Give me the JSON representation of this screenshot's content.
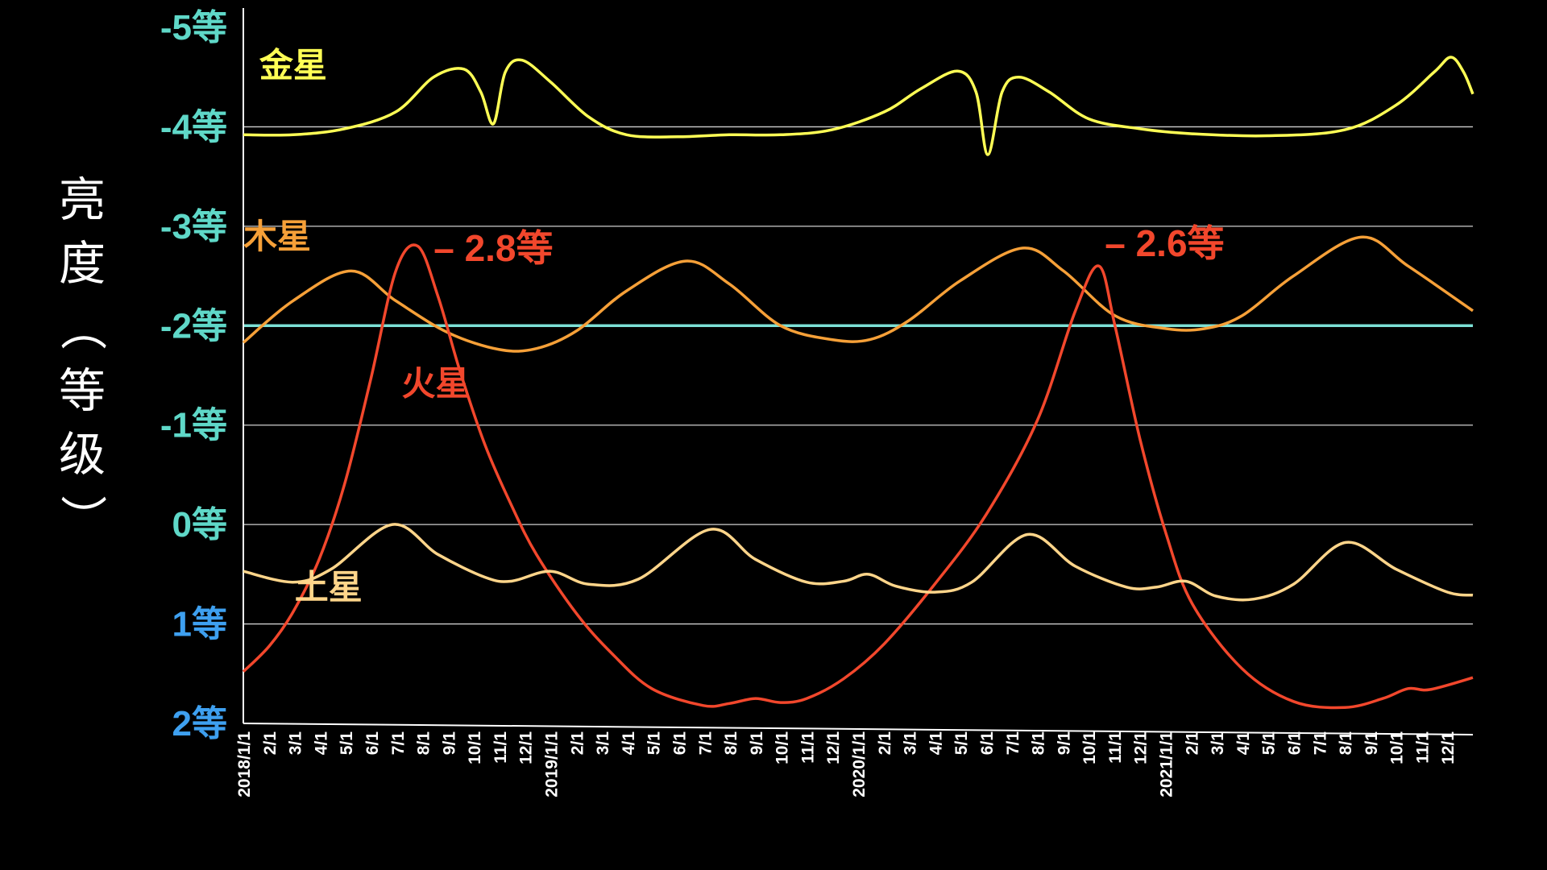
{
  "chart_data": {
    "type": "line",
    "ylabel": "亮度（等级）",
    "ylim": [
      2,
      -5
    ],
    "y_ticks": [
      {
        "value": -5,
        "label": "-5等",
        "color": "#5fd8c8"
      },
      {
        "value": -4,
        "label": "-4等",
        "color": "#5fd8c8"
      },
      {
        "value": -3,
        "label": "-3等",
        "color": "#5fd8c8"
      },
      {
        "value": -2,
        "label": "-2等",
        "color": "#5fd8c8"
      },
      {
        "value": -1,
        "label": "-1等",
        "color": "#5fd8c8"
      },
      {
        "value": 0,
        "label": "0等",
        "color": "#5fd8c8"
      },
      {
        "value": 1,
        "label": "1等",
        "color": "#3ea0f0"
      },
      {
        "value": 2,
        "label": "2等",
        "color": "#3ea0f0"
      }
    ],
    "gridlines": [
      -4,
      -3,
      -1,
      0,
      1
    ],
    "reference_line": {
      "value": -2,
      "color": "#7ce0d6"
    },
    "x_range": [
      "2018-01-01",
      "2021-12-31"
    ],
    "x_tick_labels": [
      "2018/1/1",
      "2/1",
      "3/1",
      "4/1",
      "5/1",
      "6/1",
      "7/1",
      "8/1",
      "9/1",
      "10/1",
      "11/1",
      "12/1",
      "2019/1/1",
      "2/1",
      "3/1",
      "4/1",
      "5/1",
      "6/1",
      "7/1",
      "8/1",
      "9/1",
      "10/1",
      "11/1",
      "12/1",
      "2020/1/1",
      "2/1",
      "3/1",
      "4/1",
      "5/1",
      "6/1",
      "7/1",
      "8/1",
      "9/1",
      "10/1",
      "11/1",
      "12/1",
      "2021/1/1",
      "2/1",
      "3/1",
      "4/1",
      "5/1",
      "6/1",
      "7/1",
      "8/1",
      "9/1",
      "10/1",
      "11/1",
      "12/1"
    ],
    "series": [
      {
        "name": "金星",
        "color": "#ffff55",
        "label_color": "#ffff55",
        "points": [
          [
            "2018-01-01",
            -3.92
          ],
          [
            "2018-03-01",
            -3.92
          ],
          [
            "2018-05-01",
            -3.98
          ],
          [
            "2018-07-01",
            -4.15
          ],
          [
            "2018-08-15",
            -4.5
          ],
          [
            "2018-09-20",
            -4.58
          ],
          [
            "2018-10-10",
            -4.35
          ],
          [
            "2018-10-25",
            -4.03
          ],
          [
            "2018-11-08",
            -4.55
          ],
          [
            "2018-11-28",
            -4.67
          ],
          [
            "2019-01-01",
            -4.45
          ],
          [
            "2019-02-15",
            -4.1
          ],
          [
            "2019-04-01",
            -3.92
          ],
          [
            "2019-06-01",
            -3.9
          ],
          [
            "2019-08-01",
            -3.92
          ],
          [
            "2019-10-01",
            -3.92
          ],
          [
            "2019-12-01",
            -3.97
          ],
          [
            "2020-02-01",
            -4.15
          ],
          [
            "2020-03-15",
            -4.38
          ],
          [
            "2020-04-28",
            -4.56
          ],
          [
            "2020-05-20",
            -4.35
          ],
          [
            "2020-06-03",
            -3.72
          ],
          [
            "2020-06-20",
            -4.35
          ],
          [
            "2020-07-10",
            -4.5
          ],
          [
            "2020-08-15",
            -4.35
          ],
          [
            "2020-10-01",
            -4.08
          ],
          [
            "2020-12-01",
            -3.98
          ],
          [
            "2021-02-01",
            -3.93
          ],
          [
            "2021-05-01",
            -3.91
          ],
          [
            "2021-08-01",
            -3.97
          ],
          [
            "2021-10-01",
            -4.22
          ],
          [
            "2021-11-15",
            -4.55
          ],
          [
            "2021-12-05",
            -4.7
          ],
          [
            "2021-12-20",
            -4.55
          ],
          [
            "2021-12-31",
            -4.33
          ]
        ]
      },
      {
        "name": "木星",
        "color": "#f6a038",
        "label_color": "#f6a038",
        "points": [
          [
            "2018-01-01",
            -1.83
          ],
          [
            "2018-03-01",
            -2.25
          ],
          [
            "2018-05-09",
            -2.55
          ],
          [
            "2018-07-01",
            -2.25
          ],
          [
            "2018-09-01",
            -1.93
          ],
          [
            "2018-11-01",
            -1.76
          ],
          [
            "2018-12-15",
            -1.77
          ],
          [
            "2019-02-01",
            -1.95
          ],
          [
            "2019-04-01",
            -2.35
          ],
          [
            "2019-06-10",
            -2.65
          ],
          [
            "2019-08-01",
            -2.42
          ],
          [
            "2019-10-01",
            -2.0
          ],
          [
            "2019-12-01",
            -1.86
          ],
          [
            "2020-01-15",
            -1.86
          ],
          [
            "2020-03-01",
            -2.05
          ],
          [
            "2020-05-01",
            -2.45
          ],
          [
            "2020-07-14",
            -2.78
          ],
          [
            "2020-09-01",
            -2.55
          ],
          [
            "2020-11-01",
            -2.1
          ],
          [
            "2021-01-01",
            -1.97
          ],
          [
            "2021-02-15",
            -1.97
          ],
          [
            "2021-04-01",
            -2.1
          ],
          [
            "2021-06-01",
            -2.5
          ],
          [
            "2021-08-20",
            -2.89
          ],
          [
            "2021-10-15",
            -2.6
          ],
          [
            "2021-12-31",
            -2.15
          ]
        ]
      },
      {
        "name": "火星",
        "color": "#f2472c",
        "label_color": "#f2472c",
        "points": [
          [
            "2018-01-01",
            1.48
          ],
          [
            "2018-02-01",
            1.22
          ],
          [
            "2018-03-01",
            0.88
          ],
          [
            "2018-04-01",
            0.35
          ],
          [
            "2018-05-01",
            -0.4
          ],
          [
            "2018-06-01",
            -1.45
          ],
          [
            "2018-07-01",
            -2.55
          ],
          [
            "2018-07-27",
            -2.8
          ],
          [
            "2018-08-20",
            -2.3
          ],
          [
            "2018-09-15",
            -1.55
          ],
          [
            "2018-10-15",
            -0.8
          ],
          [
            "2018-11-15",
            -0.2
          ],
          [
            "2018-12-15",
            0.3
          ],
          [
            "2019-02-01",
            0.9
          ],
          [
            "2019-03-15",
            1.3
          ],
          [
            "2019-05-01",
            1.65
          ],
          [
            "2019-07-01",
            1.82
          ],
          [
            "2019-08-01",
            1.8
          ],
          [
            "2019-09-01",
            1.75
          ],
          [
            "2019-10-01",
            1.79
          ],
          [
            "2019-11-01",
            1.75
          ],
          [
            "2019-12-15",
            1.55
          ],
          [
            "2020-02-01",
            1.2
          ],
          [
            "2020-04-01",
            0.6
          ],
          [
            "2020-06-01",
            -0.1
          ],
          [
            "2020-08-01",
            -1.05
          ],
          [
            "2020-09-15",
            -2.15
          ],
          [
            "2020-10-13",
            -2.6
          ],
          [
            "2020-11-01",
            -2.0
          ],
          [
            "2020-12-01",
            -0.85
          ],
          [
            "2021-01-01",
            0.1
          ],
          [
            "2021-02-01",
            0.8
          ],
          [
            "2021-04-01",
            1.45
          ],
          [
            "2021-06-01",
            1.78
          ],
          [
            "2021-08-01",
            1.84
          ],
          [
            "2021-09-15",
            1.75
          ],
          [
            "2021-10-15",
            1.65
          ],
          [
            "2021-11-10",
            1.66
          ],
          [
            "2021-12-31",
            1.54
          ]
        ]
      },
      {
        "name": "土星",
        "color": "#ffd58a",
        "label_color": "#ffd58a",
        "points": [
          [
            "2018-01-01",
            0.47
          ],
          [
            "2018-03-01",
            0.58
          ],
          [
            "2018-04-15",
            0.45
          ],
          [
            "2018-06-27",
            0.0
          ],
          [
            "2018-08-20",
            0.3
          ],
          [
            "2018-10-15",
            0.53
          ],
          [
            "2018-11-15",
            0.57
          ],
          [
            "2019-01-01",
            0.47
          ],
          [
            "2019-02-15",
            0.6
          ],
          [
            "2019-04-15",
            0.55
          ],
          [
            "2019-07-09",
            0.05
          ],
          [
            "2019-09-01",
            0.35
          ],
          [
            "2019-11-01",
            0.58
          ],
          [
            "2019-12-15",
            0.57
          ],
          [
            "2020-01-13",
            0.5
          ],
          [
            "2020-02-15",
            0.62
          ],
          [
            "2020-04-01",
            0.68
          ],
          [
            "2020-05-15",
            0.58
          ],
          [
            "2020-07-20",
            0.1
          ],
          [
            "2020-09-15",
            0.42
          ],
          [
            "2020-11-15",
            0.63
          ],
          [
            "2020-12-20",
            0.63
          ],
          [
            "2021-01-24",
            0.57
          ],
          [
            "2021-03-01",
            0.72
          ],
          [
            "2021-04-15",
            0.75
          ],
          [
            "2021-06-01",
            0.6
          ],
          [
            "2021-08-02",
            0.18
          ],
          [
            "2021-10-01",
            0.45
          ],
          [
            "2021-12-01",
            0.68
          ],
          [
            "2021-12-31",
            0.71
          ]
        ]
      }
    ],
    "series_labels": [
      {
        "series": "金星",
        "at": [
          "2018-01-20",
          -4.5
        ]
      },
      {
        "series": "木星",
        "at": [
          "2018-01-01",
          -2.78
        ]
      },
      {
        "series": "火星",
        "at": [
          "2018-07-08",
          -1.3
        ]
      },
      {
        "series": "土星",
        "at": [
          "2018-03-03",
          0.75
        ]
      }
    ],
    "annotations": [
      {
        "text": "– 2.8等",
        "color": "#f2472c",
        "at": [
          "2018-08-15",
          -2.65
        ]
      },
      {
        "text": "– 2.6等",
        "color": "#f2472c",
        "at": [
          "2020-10-20",
          -2.7
        ]
      }
    ]
  }
}
